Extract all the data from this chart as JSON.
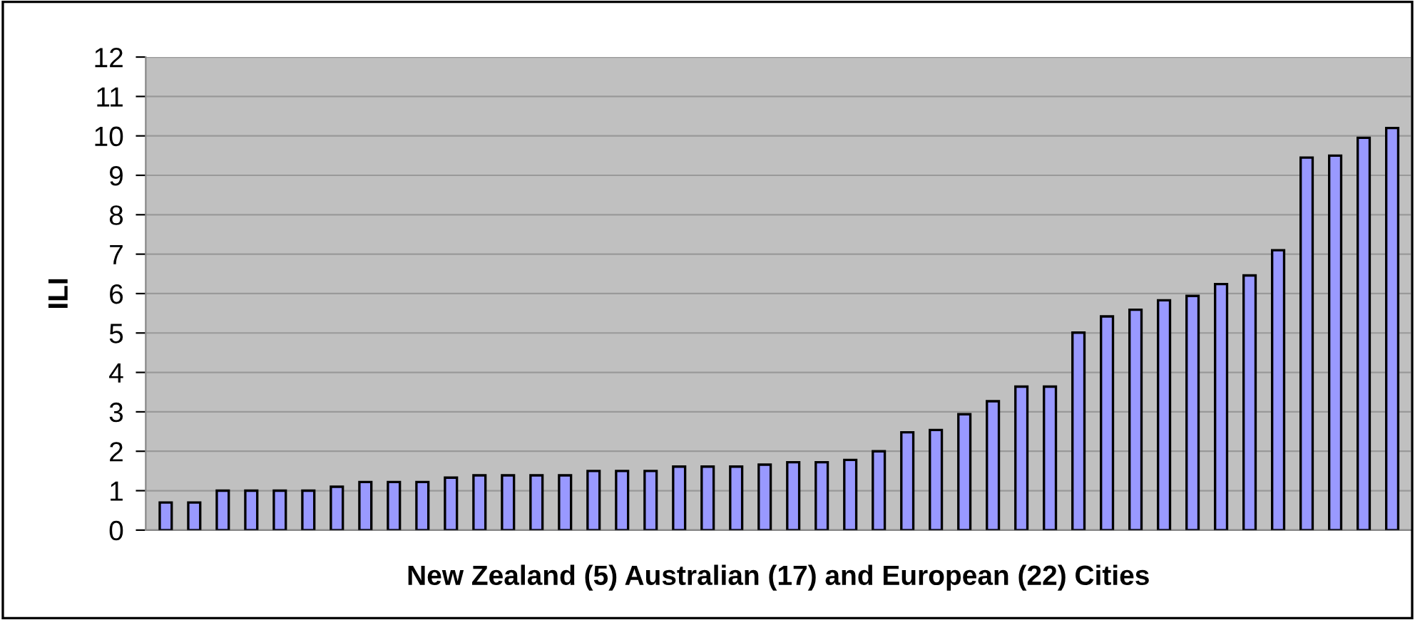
{
  "chart_data": {
    "type": "bar",
    "xlabel": "New Zealand (5) Australian (17) and European (22) Cities",
    "ylabel": "ILI",
    "categories": [
      null,
      null,
      null,
      null,
      null,
      null,
      null,
      null,
      null,
      null,
      null,
      null,
      null,
      null,
      null,
      null,
      null,
      null,
      null,
      null,
      null,
      null,
      null,
      null,
      null,
      null,
      null,
      null,
      null,
      null,
      null,
      null,
      null,
      null,
      null,
      null,
      null,
      null,
      null,
      null,
      null,
      null,
      null,
      null
    ],
    "values": [
      0.7,
      0.7,
      1.0,
      1.0,
      1.0,
      1.0,
      1.1,
      1.22,
      1.22,
      1.22,
      1.33,
      1.39,
      1.39,
      1.39,
      1.39,
      1.5,
      1.5,
      1.5,
      1.61,
      1.61,
      1.61,
      1.66,
      1.72,
      1.72,
      1.78,
      2.0,
      2.48,
      2.54,
      2.94,
      3.27,
      3.64,
      3.64,
      5.01,
      5.42,
      5.59,
      5.83,
      5.94,
      6.24,
      6.46,
      7.1,
      9.45,
      9.5,
      9.95,
      10.2
    ],
    "color": "#9999ff",
    "ylim": [
      0,
      12
    ],
    "yticks": [
      0,
      1,
      2,
      3,
      4,
      5,
      6,
      7,
      8,
      9,
      10,
      11,
      12
    ],
    "grid": "y"
  }
}
